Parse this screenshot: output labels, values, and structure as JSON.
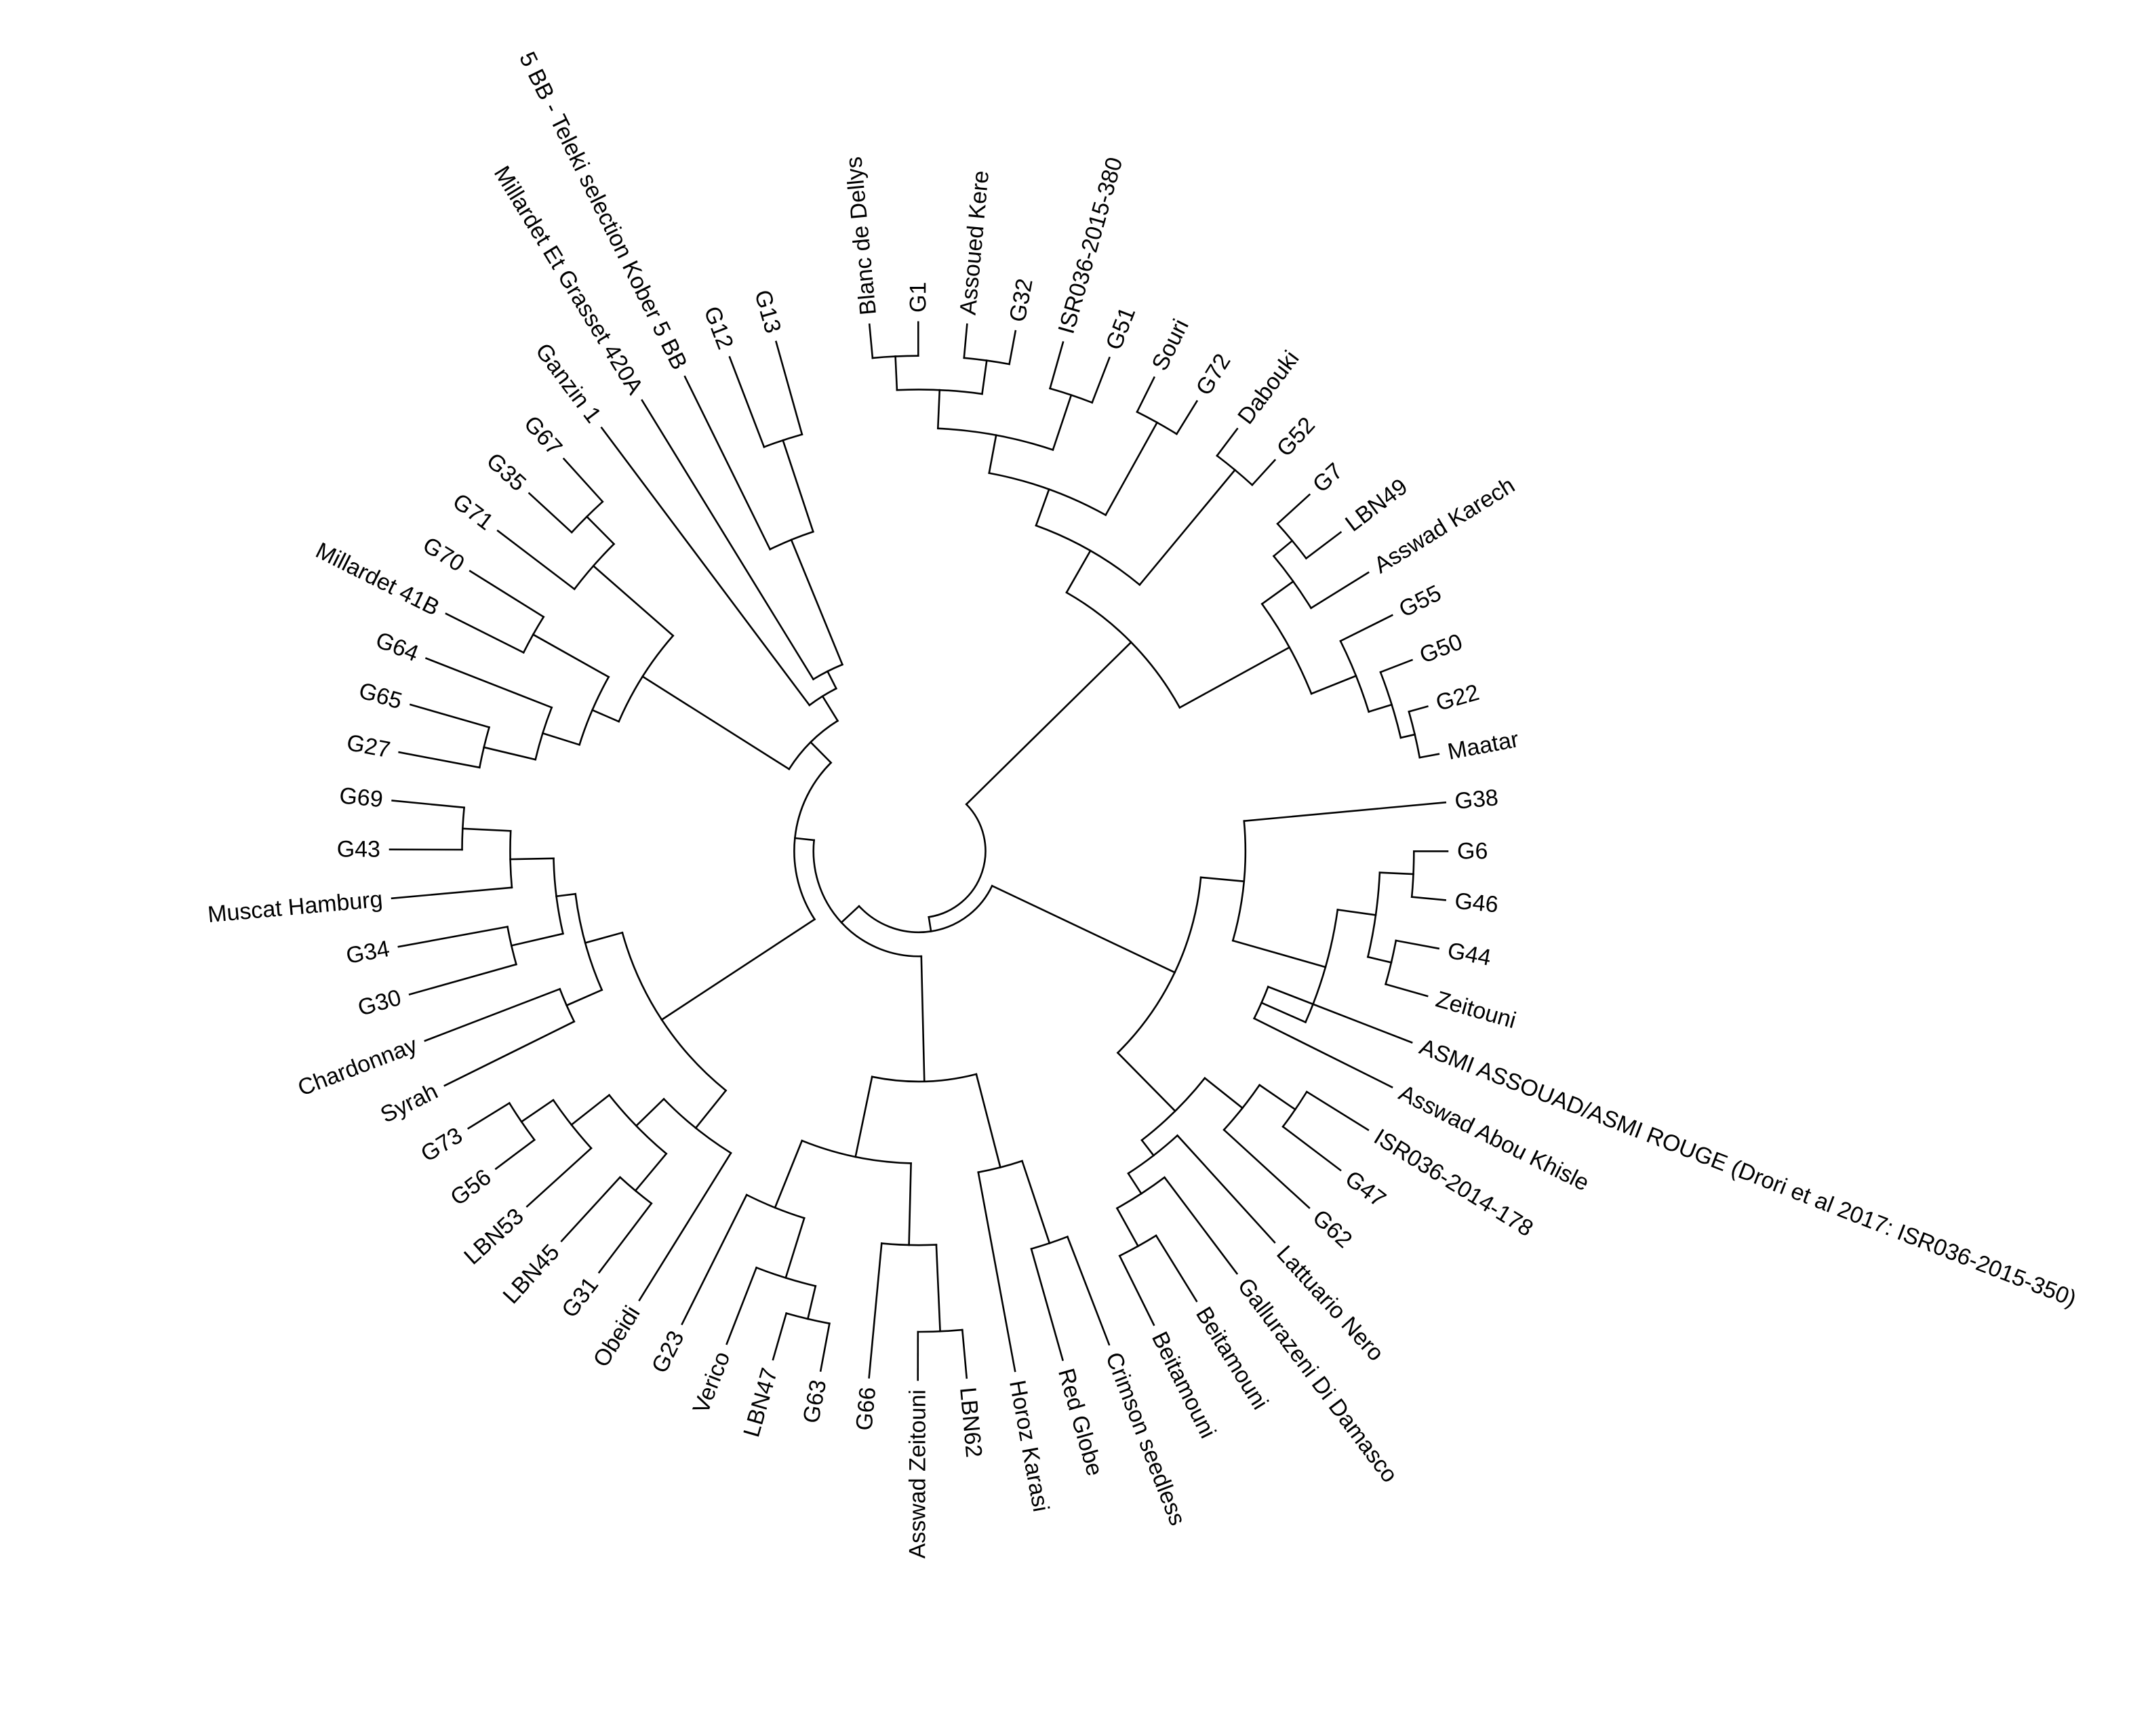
{
  "diagram": {
    "type": "circular-dendrogram",
    "line_color": "#000000",
    "background": "#ffffff",
    "leaves": [
      "Blanc de Dellys",
      "G1",
      "Assoued Kere",
      "G32",
      "ISR036-2015-380",
      "G51",
      "Souri",
      "G72",
      "Dabouki",
      "G52",
      "G7",
      "LBN49",
      "Asswad Karech",
      "G55",
      "G50",
      "G22",
      "Maatar",
      "G38",
      "G6",
      "G46",
      "G44",
      "Zeitouni",
      "ASMI ASSOUAD/ASMI ROUGE (Drori et al 2017: ISR036-2015-350)",
      "Asswad Abou Khisle",
      "ISR036-2014-178",
      "G47",
      "G62",
      "Lattuario Nero",
      "Gallurazeni Di Damasco",
      "Beitamouni",
      "Beitamouni",
      "Crimson seedless",
      "Red Globe",
      "Horoz Karasi",
      "LBN62",
      "Asswad Zeitouni",
      "G66",
      "G63",
      "LBN47",
      "Verico",
      "G23",
      "Obeidi",
      "G31",
      "LBN45",
      "LBN53",
      "G56",
      "G73",
      "Syrah",
      "Chardonnay",
      "G30",
      "G34",
      "Muscat Hamburg",
      "G43",
      "G69",
      "G27",
      "G65",
      "G64",
      "Millardet 41B",
      "G70",
      "G71",
      "G35",
      "G67",
      "Ganzin 1",
      "Millardet Et Grasset 420A",
      "5 BB - Teleki selection Kober 5 BB",
      "G12",
      "G13"
    ]
  }
}
